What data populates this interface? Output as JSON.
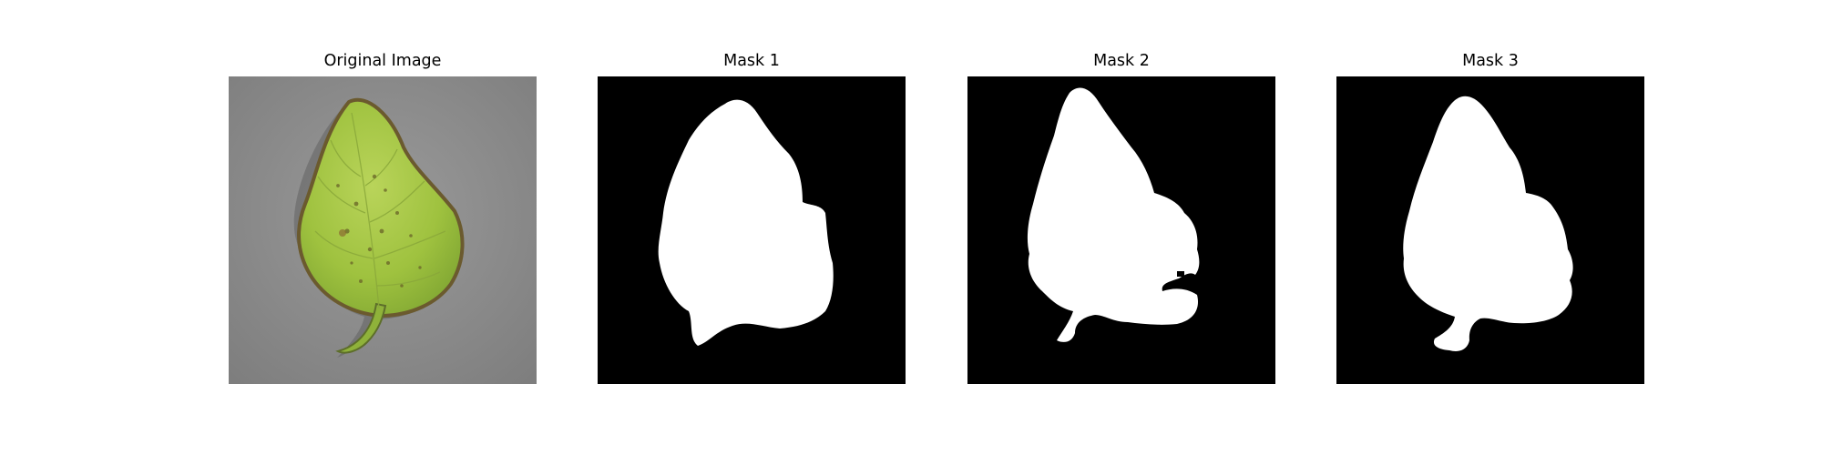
{
  "panels": [
    {
      "title": "Original Image",
      "kind": "photo"
    },
    {
      "title": "Mask 1",
      "kind": "mask"
    },
    {
      "title": "Mask 2",
      "kind": "mask"
    },
    {
      "title": "Mask 3",
      "kind": "mask"
    }
  ],
  "colors": {
    "background": "#ffffff",
    "mask_background": "#000000",
    "mask_foreground": "#ffffff",
    "photo_background": "#8c8c8c",
    "leaf_green": "#a9c94a",
    "leaf_edge": "#6b5a2e"
  },
  "icons": [
    "leaf-image"
  ]
}
